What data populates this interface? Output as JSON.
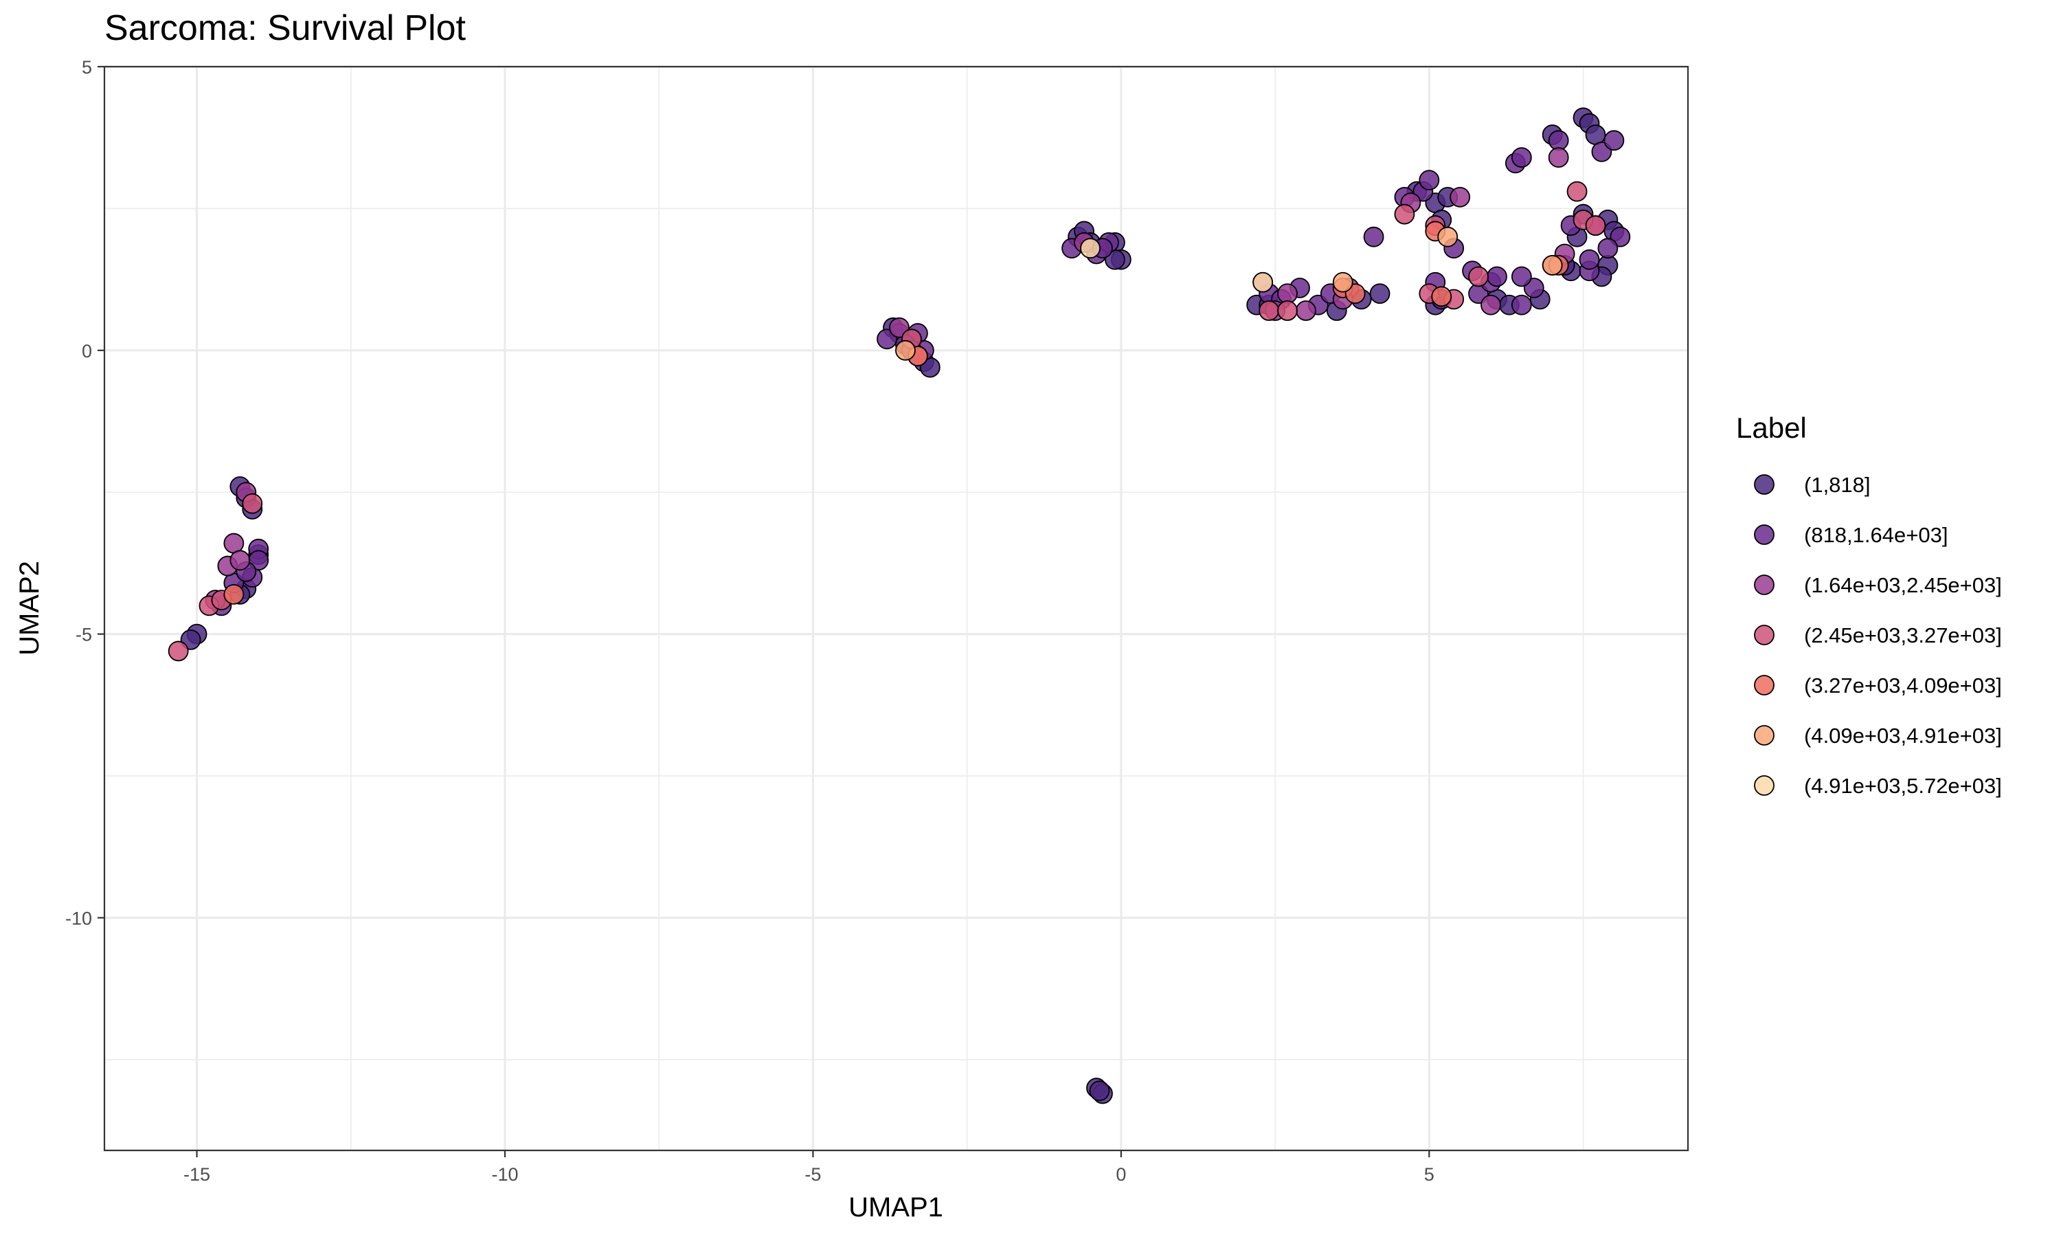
{
  "chart_data": {
    "type": "scatter",
    "title": "Sarcoma: Survival Plot",
    "xlabel": "UMAP1",
    "ylabel": "UMAP2",
    "xlim": [
      -16.5,
      9.2
    ],
    "ylim": [
      -14.1,
      5.0
    ],
    "x_ticks": [
      -15,
      -10,
      -5,
      0,
      5
    ],
    "x_tick_labels": [
      "-15",
      "-10",
      "-5",
      "0",
      "5"
    ],
    "y_ticks": [
      5,
      0,
      -5,
      -10
    ],
    "y_tick_labels": [
      "5",
      "0",
      "-5",
      "-10"
    ],
    "grid": true,
    "legend": {
      "title": "Label",
      "placement": "right",
      "entries": [
        {
          "label": "(1,818]",
          "color": "#4b2a80"
        },
        {
          "label": "(818,1.64e+03]",
          "color": "#6a2c8e"
        },
        {
          "label": "(1.64e+03,2.45e+03]",
          "color": "#9b3c93"
        },
        {
          "label": "(2.45e+03,3.27e+03]",
          "color": "#d0537a"
        },
        {
          "label": "(3.27e+03,4.09e+03]",
          "color": "#ee6f62"
        },
        {
          "label": "(4.09e+03,4.91e+03]",
          "color": "#f9a779"
        },
        {
          "label": "(4.91e+03,5.72e+03]",
          "color": "#fbd9a8"
        }
      ]
    },
    "series": [
      {
        "label_index": 0,
        "points": [
          [
            -14.3,
            -2.4
          ],
          [
            -14.2,
            -2.6
          ],
          [
            -14.1,
            -2.8
          ],
          [
            -14.0,
            -3.6
          ],
          [
            -14.2,
            -4.2
          ],
          [
            -14.3,
            -4.3
          ],
          [
            -15.0,
            -5.0
          ],
          [
            -15.1,
            -5.1
          ],
          [
            -3.7,
            0.4
          ],
          [
            -3.6,
            0.3
          ],
          [
            -3.4,
            0.2
          ],
          [
            -3.2,
            -0.2
          ],
          [
            -3.1,
            -0.3
          ],
          [
            -0.7,
            2.0
          ],
          [
            -0.6,
            2.1
          ],
          [
            -0.5,
            1.9
          ],
          [
            -0.1,
            1.9
          ],
          [
            0.0,
            1.6
          ],
          [
            -0.1,
            1.6
          ],
          [
            -0.4,
            -13.0
          ],
          [
            -0.3,
            -13.1
          ],
          [
            -0.35,
            -13.05
          ],
          [
            2.2,
            0.8
          ],
          [
            2.4,
            0.8
          ],
          [
            3.5,
            0.7
          ],
          [
            3.9,
            0.9
          ],
          [
            5.1,
            0.8
          ],
          [
            5.2,
            0.9
          ],
          [
            6.1,
            0.9
          ],
          [
            6.3,
            0.8
          ],
          [
            6.8,
            0.9
          ],
          [
            7.0,
            3.8
          ],
          [
            7.5,
            4.1
          ],
          [
            7.6,
            4.0
          ],
          [
            7.7,
            3.8
          ],
          [
            7.9,
            2.3
          ],
          [
            8.0,
            2.1
          ],
          [
            7.3,
            1.4
          ],
          [
            7.4,
            2.0
          ],
          [
            7.5,
            2.4
          ],
          [
            7.2,
            1.5
          ],
          [
            7.9,
            1.5
          ],
          [
            7.8,
            1.3
          ],
          [
            4.8,
            2.8
          ],
          [
            5.1,
            2.6
          ],
          [
            5.2,
            2.3
          ],
          [
            5.3,
            2.7
          ],
          [
            4.2,
            1.0
          ]
        ]
      },
      {
        "label_index": 1,
        "points": [
          [
            -14.0,
            -3.5
          ],
          [
            -14.1,
            -4.0
          ],
          [
            -14.0,
            -3.7
          ],
          [
            -14.6,
            -4.5
          ],
          [
            -14.4,
            -4.1
          ],
          [
            -14.2,
            -3.9
          ],
          [
            -3.8,
            0.2
          ],
          [
            -3.3,
            0.3
          ],
          [
            -3.2,
            0.0
          ],
          [
            -3.5,
            0.1
          ],
          [
            -0.8,
            1.8
          ],
          [
            -0.4,
            1.7
          ],
          [
            -0.2,
            1.9
          ],
          [
            -0.3,
            1.8
          ],
          [
            2.4,
            1.0
          ],
          [
            2.6,
            0.9
          ],
          [
            2.9,
            1.1
          ],
          [
            3.2,
            0.8
          ],
          [
            3.4,
            1.0
          ],
          [
            4.1,
            2.0
          ],
          [
            4.6,
            2.7
          ],
          [
            4.9,
            2.8
          ],
          [
            5.0,
            3.0
          ],
          [
            5.4,
            1.8
          ],
          [
            5.8,
            1.0
          ],
          [
            6.0,
            1.2
          ],
          [
            6.4,
            3.3
          ],
          [
            6.5,
            3.4
          ],
          [
            6.5,
            0.8
          ],
          [
            6.7,
            1.1
          ],
          [
            7.1,
            3.7
          ],
          [
            7.6,
            1.4
          ],
          [
            7.8,
            3.5
          ],
          [
            8.0,
            3.7
          ],
          [
            7.3,
            2.2
          ],
          [
            7.6,
            1.6
          ],
          [
            8.1,
            2.0
          ],
          [
            7.9,
            1.8
          ],
          [
            5.1,
            1.2
          ],
          [
            5.7,
            1.4
          ],
          [
            6.1,
            1.3
          ],
          [
            6.5,
            1.3
          ]
        ]
      },
      {
        "label_index": 2,
        "points": [
          [
            -14.5,
            -3.8
          ],
          [
            -14.4,
            -3.4
          ],
          [
            -14.3,
            -3.7
          ],
          [
            -14.2,
            -2.5
          ],
          [
            -14.7,
            -4.4
          ],
          [
            -3.6,
            0.4
          ],
          [
            -3.4,
            0.0
          ],
          [
            -0.6,
            1.9
          ],
          [
            2.3,
            1.2
          ],
          [
            2.5,
            0.7
          ],
          [
            2.7,
            1.0
          ],
          [
            3.0,
            0.7
          ],
          [
            3.7,
            1.1
          ],
          [
            4.7,
            2.6
          ],
          [
            5.5,
            2.7
          ],
          [
            7.1,
            3.4
          ],
          [
            7.2,
            1.7
          ],
          [
            7.7,
            2.2
          ],
          [
            6.0,
            0.8
          ],
          [
            3.6,
            0.9
          ]
        ]
      },
      {
        "label_index": 3,
        "points": [
          [
            -15.3,
            -5.3
          ],
          [
            -14.8,
            -4.5
          ],
          [
            -14.6,
            -4.4
          ],
          [
            -14.1,
            -2.7
          ],
          [
            -3.3,
            -0.1
          ],
          [
            -3.4,
            0.2
          ],
          [
            2.4,
            0.7
          ],
          [
            2.7,
            0.7
          ],
          [
            4.6,
            2.4
          ],
          [
            5.0,
            1.0
          ],
          [
            5.4,
            0.9
          ],
          [
            5.8,
            1.3
          ],
          [
            7.4,
            2.8
          ],
          [
            7.5,
            2.3
          ],
          [
            7.0,
            1.5
          ],
          [
            7.7,
            2.2
          ],
          [
            5.1,
            2.2
          ]
        ]
      },
      {
        "label_index": 4,
        "points": [
          [
            -14.4,
            -4.3
          ],
          [
            -3.3,
            -0.1
          ],
          [
            3.6,
            1.1
          ],
          [
            3.8,
            1.0
          ],
          [
            5.1,
            2.1
          ],
          [
            7.1,
            1.5
          ],
          [
            5.2,
            0.95
          ]
        ]
      },
      {
        "label_index": 5,
        "points": [
          [
            -3.5,
            0.0
          ],
          [
            5.3,
            2.0
          ],
          [
            3.6,
            1.2
          ],
          [
            7.0,
            1.5
          ]
        ]
      },
      {
        "label_index": 6,
        "points": [
          [
            2.3,
            1.2
          ],
          [
            -0.5,
            1.8
          ]
        ]
      }
    ]
  }
}
